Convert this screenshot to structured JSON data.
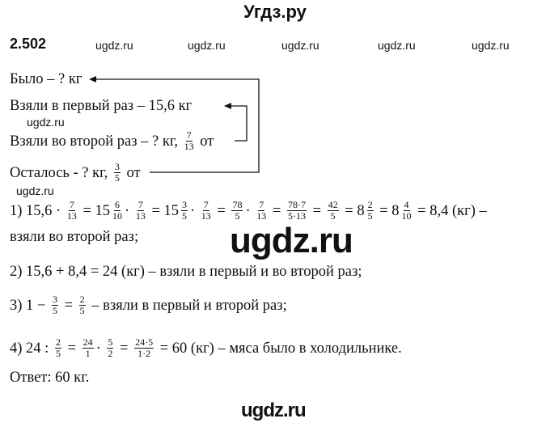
{
  "site_title": "Угдз.ру",
  "task_number": "2.502",
  "watermark": "ugdz.ru",
  "watermarks_top": [
    "ugdz.ru",
    "ugdz.ru",
    "ugdz.ru",
    "ugdz.ru",
    "ugdz.ru"
  ],
  "condition": [
    [
      "Было – ? кг"
    ],
    [
      "Взяли в первый раз – 15,6 кг"
    ],
    [
      "Взяли во второй раз – ? кг, ",
      {
        "n": "7",
        "d": "13"
      },
      " от"
    ],
    [
      "Осталось - ? кг, ",
      {
        "n": "3",
        "d": "5"
      },
      " от"
    ]
  ],
  "solution": [
    [
      "1) 15,6 · ",
      {
        "n": "7",
        "d": "13"
      },
      " = 15",
      {
        "n": "6",
        "d": "10"
      },
      "· ",
      {
        "n": "7",
        "d": "13"
      },
      " = 15",
      {
        "n": "3",
        "d": "5"
      },
      "· ",
      {
        "n": "7",
        "d": "13"
      },
      " = ",
      {
        "n": "78",
        "d": "5"
      },
      "· ",
      {
        "n": "7",
        "d": "13"
      },
      " = ",
      {
        "n": "78·7",
        "d": "5·13"
      },
      " = ",
      {
        "n": "42",
        "d": "5"
      },
      " = 8",
      {
        "n": "2",
        "d": "5"
      },
      " = 8",
      {
        "n": "4",
        "d": "10"
      },
      " = 8,4 (кг) –"
    ],
    [
      "взяли во второй раз;"
    ],
    [
      "2) 15,6 + 8,4 = 24 (кг) – взяли в первый и во второй раз;"
    ],
    [
      "3) 1 − ",
      {
        "n": "3",
        "d": "5"
      },
      " = ",
      {
        "n": "2",
        "d": "5"
      },
      " – взяли в первый и второй раз;"
    ],
    [
      "4) 24 : ",
      {
        "n": "2",
        "d": "5"
      },
      " = ",
      {
        "n": "24",
        "d": "1"
      },
      "· ",
      {
        "n": "5",
        "d": "2"
      },
      " = ",
      {
        "n": "24·5",
        "d": "1·2"
      },
      " = 60 (кг) – мяса было в холодильнике."
    ],
    [
      "Ответ: 60 кг."
    ]
  ]
}
